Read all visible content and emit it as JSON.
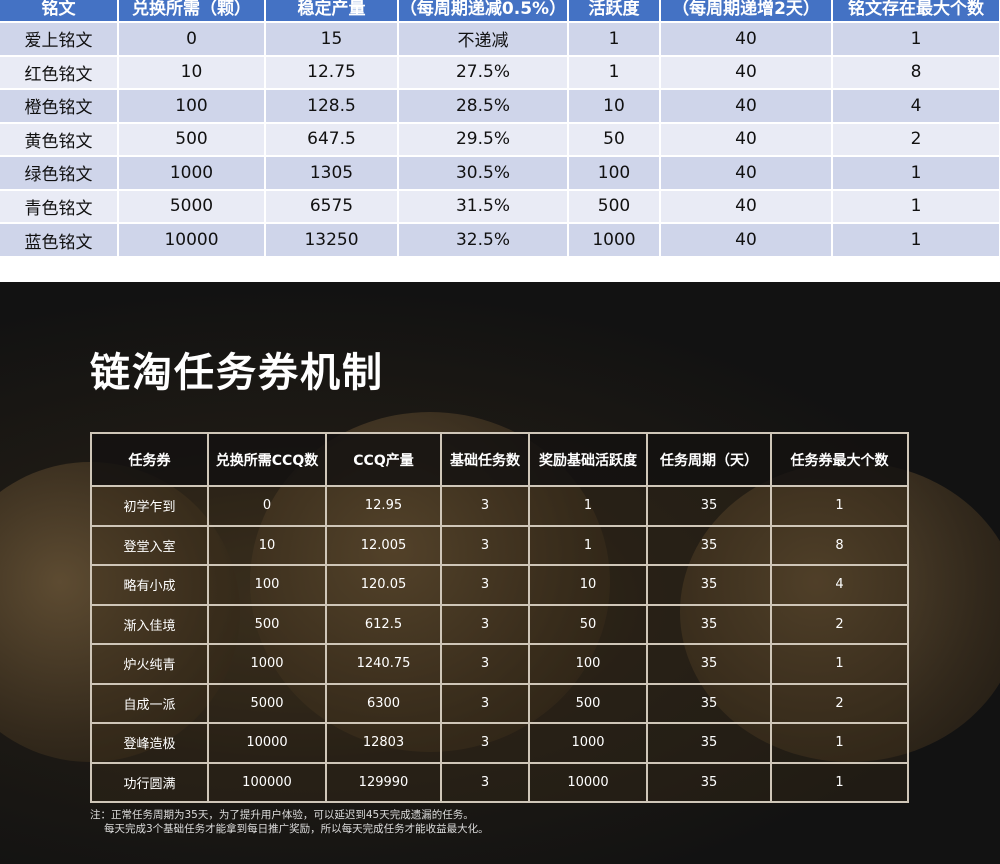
{
  "inscription_table": {
    "headers": [
      "铭文",
      "兑换所需（颗）",
      "稳定产量",
      "（每周期递减0.5%）",
      "活跃度",
      "（每周期递增2天）",
      "铭文存在最大个数"
    ],
    "rows": [
      [
        "爱上铭文",
        "0",
        "15",
        "不递减",
        "1",
        "40",
        "1"
      ],
      [
        "红色铭文",
        "10",
        "12.75",
        "27.5%",
        "1",
        "40",
        "8"
      ],
      [
        "橙色铭文",
        "100",
        "128.5",
        "28.5%",
        "10",
        "40",
        "4"
      ],
      [
        "黄色铭文",
        "500",
        "647.5",
        "29.5%",
        "50",
        "40",
        "2"
      ],
      [
        "绿色铭文",
        "1000",
        "1305",
        "30.5%",
        "100",
        "40",
        "1"
      ],
      [
        "青色铭文",
        "5000",
        "6575",
        "31.5%",
        "500",
        "40",
        "1"
      ],
      [
        "蓝色铭文",
        "10000",
        "13250",
        "32.5%",
        "1000",
        "40",
        "1"
      ]
    ]
  },
  "task_section": {
    "title": "链淘任务券机制",
    "headers": [
      "任务券",
      "兑换所需CCQ数",
      "CCQ产量",
      "基础任务数",
      "奖励基础活跃度",
      "任务周期（天）",
      "任务券最大个数"
    ],
    "rows": [
      [
        "初学乍到",
        "0",
        "12.95",
        "3",
        "1",
        "35",
        "1"
      ],
      [
        "登堂入室",
        "10",
        "12.005",
        "3",
        "1",
        "35",
        "8"
      ],
      [
        "略有小成",
        "100",
        "120.05",
        "3",
        "10",
        "35",
        "4"
      ],
      [
        "渐入佳境",
        "500",
        "612.5",
        "3",
        "50",
        "35",
        "2"
      ],
      [
        "炉火纯青",
        "1000",
        "1240.75",
        "3",
        "100",
        "35",
        "1"
      ],
      [
        "自成一派",
        "5000",
        "6300",
        "3",
        "500",
        "35",
        "2"
      ],
      [
        "登峰造极",
        "10000",
        "12803",
        "3",
        "1000",
        "35",
        "1"
      ],
      [
        "功行圆满",
        "100000",
        "129990",
        "3",
        "10000",
        "35",
        "1"
      ]
    ],
    "notes": [
      "注：正常任务周期为35天，为了提升用户体验，可以延迟到45天完成遗漏的任务。",
      "每天完成3个基础任务才能拿到每日推广奖励，所以每天完成任务才能收益最大化。"
    ]
  }
}
